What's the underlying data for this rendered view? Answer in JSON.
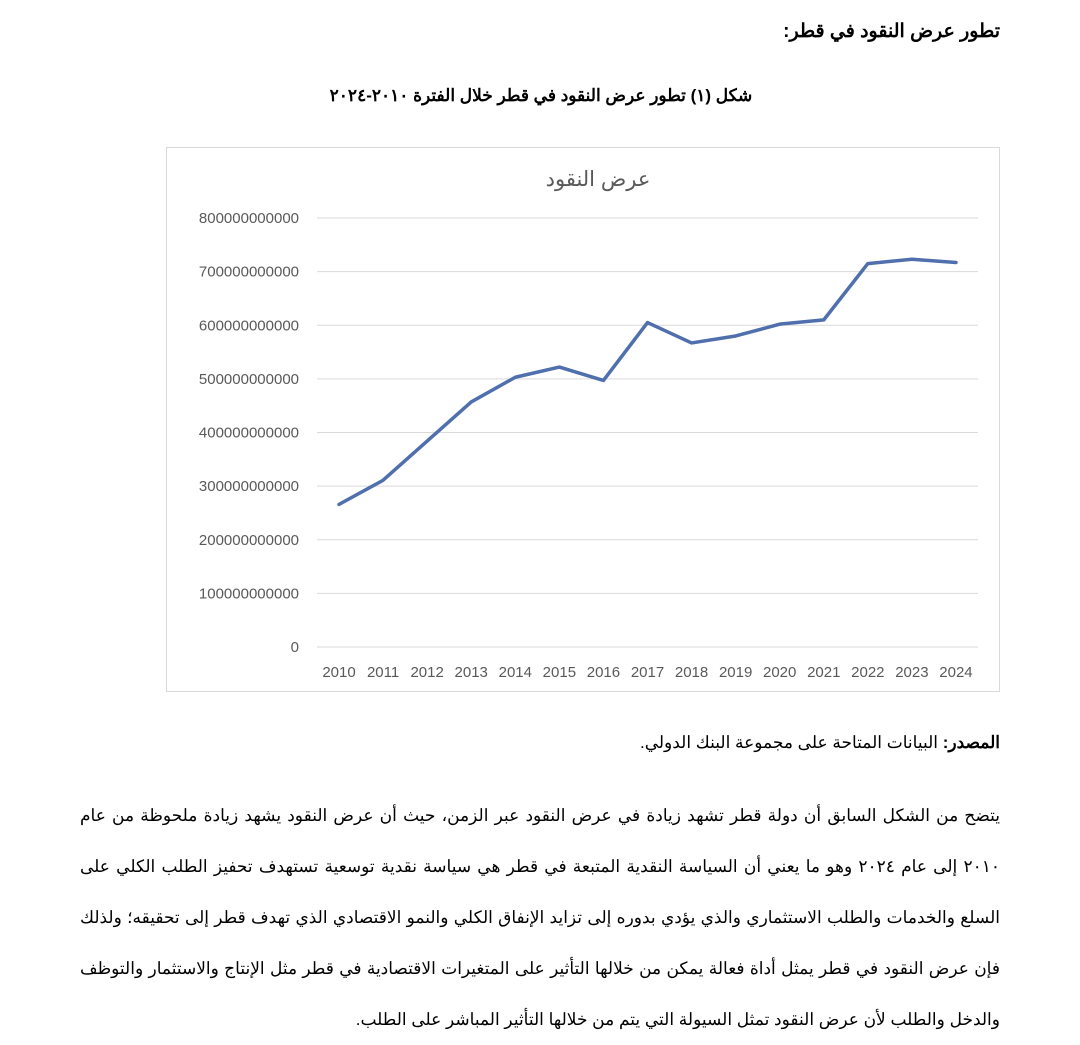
{
  "heading": "تطور عرض النقود في قطر:",
  "caption": "شكل (١) تطور عرض النقود في قطر خلال الفترة ٢٠١٠-٢٠٢٤",
  "chart_data": {
    "type": "line",
    "title": "عرض النقود",
    "xlabel": "",
    "ylabel": "",
    "categories": [
      "2010",
      "2011",
      "2012",
      "2013",
      "2014",
      "2015",
      "2016",
      "2017",
      "2018",
      "2019",
      "2020",
      "2021",
      "2022",
      "2023",
      "2024"
    ],
    "values": [
      266000000000,
      311000000000,
      384000000000,
      457000000000,
      503000000000,
      522000000000,
      497000000000,
      605000000000,
      567000000000,
      580000000000,
      602000000000,
      610000000000,
      715000000000,
      723000000000,
      717000000000
    ],
    "ylim": [
      0,
      800000000000
    ],
    "yticks": [
      "0",
      "100000000000",
      "200000000000",
      "300000000000",
      "400000000000",
      "500000000000",
      "600000000000",
      "700000000000",
      "800000000000"
    ],
    "grid": true,
    "legend": "none",
    "line_color": "#4f6fad"
  },
  "source": {
    "label": "المصدر:",
    "text": " البيانات المتاحة على مجموعة البنك الدولي."
  },
  "paragraph": "يتضح من الشكل السابق أن دولة قطر تشهد زيادة في عرض النقود عبر الزمن، حيث أن عرض النقود يشهد زيادة ملحوظة من عام ٢٠١٠ إلى عام ٢٠٢٤ وهو ما يعني أن السياسة النقدية المتبعة في قطر هي سياسة نقدية توسعية تستهدف تحفيز الطلب الكلي على السلع والخدمات والطلب الاستثماري والذي يؤدي بدوره إلى تزايد الإنفاق الكلي والنمو الاقتصادي الذي تهدف قطر إلى تحقيقه؛ ولذلك فإن عرض النقود في قطر يمثل أداة فعالة يمكن من خلالها التأثير على المتغيرات الاقتصادية في قطر مثل الإنتاج والاستثمار والتوظف والدخل والطلب لأن عرض النقود تمثل السيولة التي يتم من خلالها التأثير المباشر على الطلب."
}
